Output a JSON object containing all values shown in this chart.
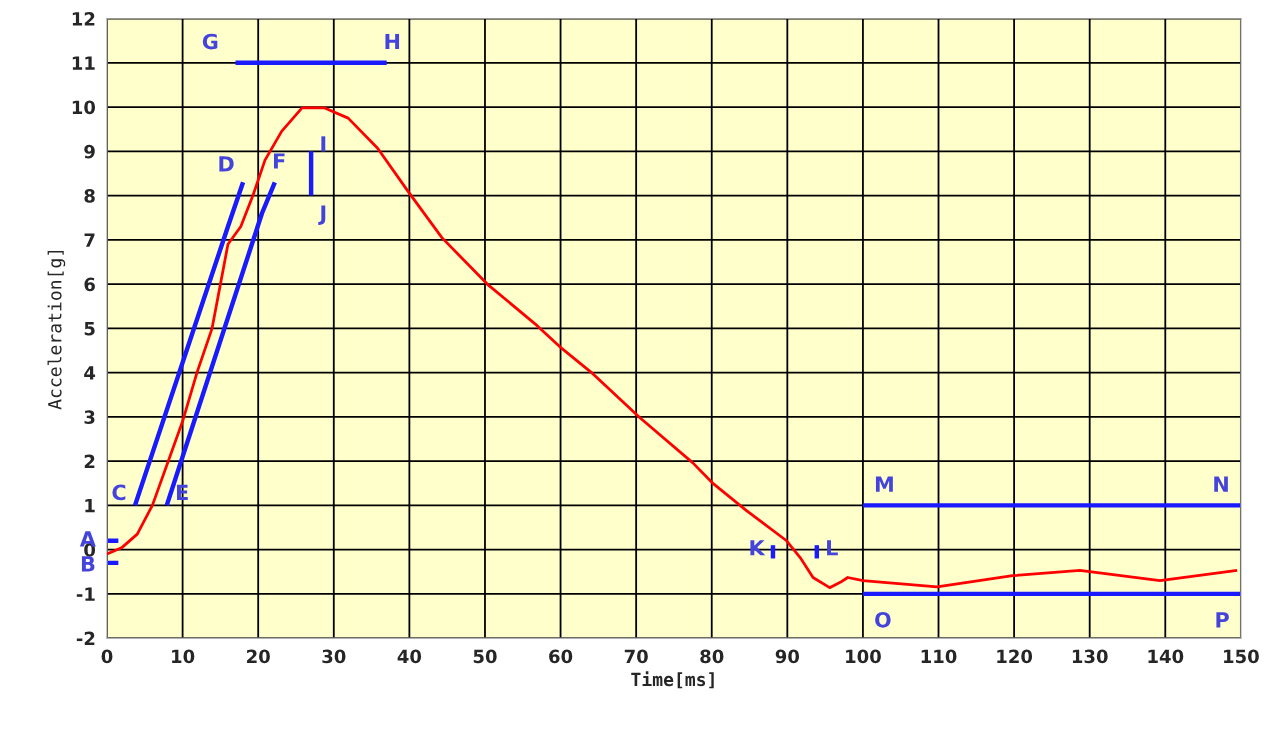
{
  "chart_data": {
    "type": "line",
    "xlabel": "Time[ms]",
    "ylabel": "Acceleration[g]",
    "xlim": [
      0,
      150
    ],
    "ylim": [
      -2,
      12
    ],
    "xticks": [
      0,
      10,
      20,
      30,
      40,
      50,
      60,
      70,
      80,
      90,
      100,
      110,
      120,
      130,
      140,
      150
    ],
    "yticks": [
      -2,
      -1,
      0,
      1,
      2,
      3,
      4,
      5,
      6,
      7,
      8,
      9,
      10,
      11,
      12
    ],
    "grid": true,
    "legend": false,
    "marker": "none",
    "line_style": "solid",
    "series": [
      {
        "color": "#ff0000",
        "x": [
          0,
          2,
          4,
          6,
          10,
          11.9,
          13.9,
          16,
          17.7,
          19.3,
          20.9,
          23.1,
          25.8,
          28.8,
          31.9,
          35.8,
          39.8,
          44.3,
          50.3,
          56.9,
          60.2,
          64.3,
          70.5,
          77.5,
          80.2,
          84.6,
          89.9,
          91.7,
          93.4,
          95.6,
          97,
          98,
          100,
          109.8,
          119.8,
          128.7,
          139.3,
          149.5
        ],
        "values": [
          -0.1,
          0.05,
          0.35,
          1.0,
          2.9,
          4.0,
          5.0,
          6.9,
          7.3,
          8.0,
          8.8,
          9.45,
          9.98,
          9.98,
          9.75,
          9.07,
          8.1,
          7.05,
          6.0,
          5.06,
          4.54,
          3.97,
          2.98,
          1.96,
          1.49,
          0.88,
          0.2,
          -0.18,
          -0.63,
          -0.86,
          -0.74,
          -0.63,
          -0.7,
          -0.84,
          -0.59,
          -0.47,
          -0.7,
          -0.47
        ]
      },
      {
        "color": "#1a1aff",
        "x": [
          0,
          1.5
        ],
        "values": [
          0.2,
          0.2
        ]
      },
      {
        "color": "#1a1aff",
        "x": [
          0,
          1.5
        ],
        "values": [
          -0.3,
          -0.3
        ]
      },
      {
        "color": "#1a1aff",
        "x": [
          3.7,
          16,
          18
        ],
        "values": [
          1,
          7.3,
          8.3
        ]
      },
      {
        "color": "#1a1aff",
        "x": [
          7.9,
          20.5,
          22.2
        ],
        "values": [
          1,
          7.6,
          8.3
        ]
      },
      {
        "color": "#1a1aff",
        "x": [
          17,
          37
        ],
        "values": [
          11,
          11
        ]
      },
      {
        "color": "#1a1aff",
        "x": [
          27,
          27
        ],
        "values": [
          8,
          9
        ]
      },
      {
        "color": "#1a1aff",
        "x": [
          88.1,
          88.1
        ],
        "values": [
          0.1,
          -0.2
        ]
      },
      {
        "color": "#1a1aff",
        "x": [
          93.9,
          93.9
        ],
        "values": [
          0.1,
          -0.2
        ]
      },
      {
        "color": "#1a1aff",
        "x": [
          100,
          150
        ],
        "values": [
          1,
          1
        ]
      },
      {
        "color": "#1a1aff",
        "x": [
          100,
          150
        ],
        "values": [
          -1,
          -1
        ]
      }
    ],
    "annotations": [
      {
        "text": "A",
        "x": 0,
        "y": 0.2
      },
      {
        "text": "B",
        "x": 0,
        "y": -0.3
      },
      {
        "text": "C",
        "x": 3.7,
        "y": 1
      },
      {
        "text": "D",
        "x": 18,
        "y": 8.3
      },
      {
        "text": "E",
        "x": 7.9,
        "y": 1
      },
      {
        "text": "F",
        "x": 22.2,
        "y": 8.3
      },
      {
        "text": "G",
        "x": 17,
        "y": 11
      },
      {
        "text": "H",
        "x": 37,
        "y": 11
      },
      {
        "text": "I",
        "x": 27,
        "y": 9
      },
      {
        "text": "J",
        "x": 27,
        "y": 8
      },
      {
        "text": "K",
        "x": 88.1,
        "y": 0
      },
      {
        "text": "L",
        "x": 93.9,
        "y": 0
      },
      {
        "text": "M",
        "x": 100,
        "y": 1
      },
      {
        "text": "N",
        "x": 150,
        "y": 1
      },
      {
        "text": "O",
        "x": 100,
        "y": -1
      },
      {
        "text": "P",
        "x": 150,
        "y": -1
      }
    ]
  }
}
